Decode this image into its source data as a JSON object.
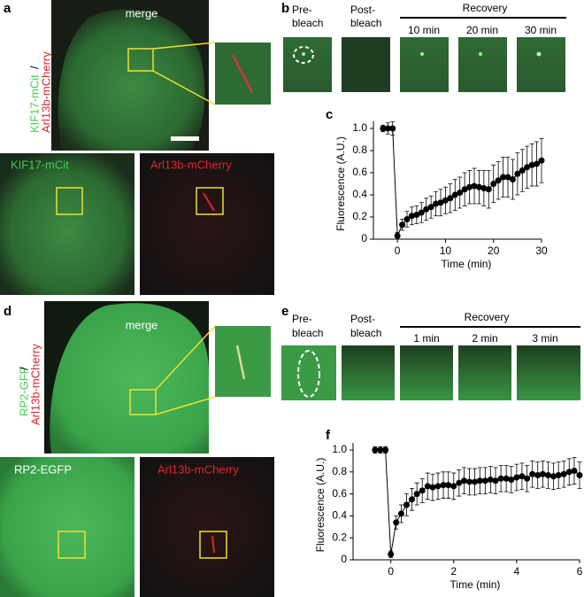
{
  "panels": {
    "a": {
      "letter": "a",
      "merge_label": "merge",
      "side_green": "KIF17-mCit",
      "side_slash": "/",
      "side_red": "Arl13b-mCherry",
      "green_label": "KIF17-mCit",
      "red_label": "Arl13b-mCherry"
    },
    "b": {
      "letter": "b",
      "columns": [
        [
          "Pre-",
          "bleach"
        ],
        [
          "Post-",
          "bleach"
        ]
      ],
      "recovery": "Recovery",
      "times": [
        "10 min",
        "20 min",
        "30 min"
      ]
    },
    "d": {
      "letter": "d",
      "merge_label": "merge",
      "side_green": "RP2-GFP",
      "side_slash": "/",
      "side_red": "Arl13b-mCherry",
      "green_label": "RP2-EGFP",
      "red_label": "Arl13b-mCherry"
    },
    "e": {
      "letter": "e",
      "columns": [
        [
          "Pre-",
          "bleach"
        ],
        [
          "Post-",
          "bleach"
        ]
      ],
      "recovery": "Recovery",
      "times": [
        "1 min",
        "2 min",
        "3 min"
      ]
    }
  },
  "chart_data": [
    {
      "type": "line",
      "panel_label": "c",
      "xlabel": "Time (min)",
      "ylabel": "Fluorescence (A.U.)",
      "color": "#000000",
      "x": [
        -3,
        -2,
        -1,
        0,
        1,
        2,
        3,
        4,
        5,
        6,
        7,
        8,
        9,
        10,
        11,
        12,
        13,
        14,
        15,
        16,
        17,
        18,
        19,
        20,
        21,
        22,
        23,
        24,
        25,
        26,
        27,
        28,
        29,
        30
      ],
      "values": [
        1,
        1,
        1,
        0.03,
        0.13,
        0.18,
        0.21,
        0.22,
        0.24,
        0.27,
        0.29,
        0.32,
        0.33,
        0.35,
        0.37,
        0.4,
        0.42,
        0.45,
        0.47,
        0.48,
        0.47,
        0.46,
        0.45,
        0.5,
        0.53,
        0.56,
        0.56,
        0.54,
        0.59,
        0.62,
        0.65,
        0.67,
        0.68,
        0.71
      ],
      "errors": [
        0.03,
        0.05,
        0.06,
        0.03,
        0.05,
        0.07,
        0.08,
        0.08,
        0.09,
        0.1,
        0.1,
        0.11,
        0.12,
        0.12,
        0.13,
        0.14,
        0.14,
        0.15,
        0.15,
        0.16,
        0.15,
        0.16,
        0.17,
        0.17,
        0.17,
        0.18,
        0.18,
        0.18,
        0.19,
        0.19,
        0.19,
        0.19,
        0.2,
        0.2
      ],
      "xlim": [
        -5,
        30
      ],
      "xticks": [
        0,
        10,
        20,
        30
      ],
      "ylim": [
        0,
        1
      ],
      "yticks": [
        0,
        0.2,
        0.4,
        0.6,
        0.8,
        {
          "value": 1,
          "label": "1.0"
        }
      ]
    },
    {
      "type": "line",
      "panel_label": "f",
      "xlabel": "Time (min)",
      "ylabel": "Fluorescence (A.U.)",
      "color": "#000000",
      "x": [
        -0.5,
        -0.33,
        -0.17,
        0,
        0.17,
        0.33,
        0.5,
        0.67,
        0.83,
        1,
        1.17,
        1.33,
        1.5,
        1.67,
        1.83,
        2,
        2.17,
        2.33,
        2.5,
        2.67,
        2.83,
        3,
        3.17,
        3.33,
        3.5,
        3.67,
        3.83,
        4,
        4.17,
        4.33,
        4.5,
        4.67,
        4.83,
        5,
        5.17,
        5.33,
        5.5,
        5.67,
        5.83,
        6
      ],
      "values": [
        1,
        1,
        1,
        0.05,
        0.34,
        0.42,
        0.5,
        0.55,
        0.6,
        0.63,
        0.67,
        0.66,
        0.67,
        0.68,
        0.68,
        0.67,
        0.7,
        0.72,
        0.71,
        0.71,
        0.72,
        0.72,
        0.73,
        0.72,
        0.74,
        0.74,
        0.73,
        0.75,
        0.76,
        0.74,
        0.78,
        0.77,
        0.78,
        0.77,
        0.76,
        0.77,
        0.78,
        0.8,
        0.81,
        0.77
      ],
      "errors": [
        0.03,
        0.03,
        0.03,
        0.03,
        0.06,
        0.08,
        0.1,
        0.1,
        0.1,
        0.11,
        0.12,
        0.12,
        0.12,
        0.12,
        0.12,
        0.12,
        0.12,
        0.12,
        0.12,
        0.12,
        0.12,
        0.12,
        0.12,
        0.12,
        0.12,
        0.12,
        0.12,
        0.12,
        0.12,
        0.12,
        0.12,
        0.12,
        0.12,
        0.12,
        0.12,
        0.12,
        0.12,
        0.12,
        0.12,
        0.12
      ],
      "xlim": [
        -1.2,
        6
      ],
      "xticks": [
        0,
        2,
        4,
        6
      ],
      "ylim": [
        0,
        1
      ],
      "yticks": [
        0,
        0.2,
        0.4,
        0.6,
        0.8,
        {
          "value": 1,
          "label": "1.0"
        }
      ]
    }
  ]
}
